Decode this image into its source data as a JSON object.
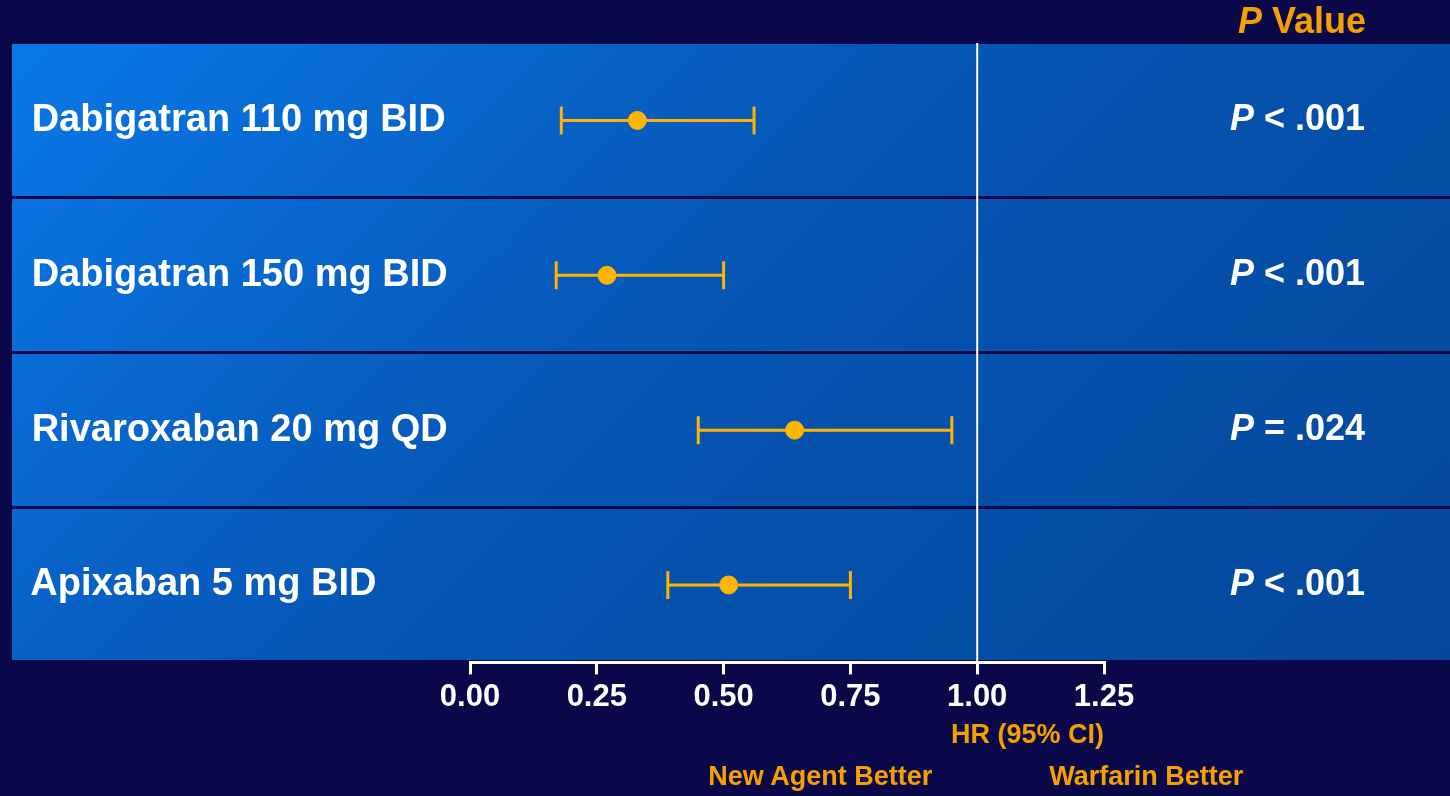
{
  "chart_data": {
    "type": "scatter",
    "orientation": "horizontal",
    "categories": [
      "Dabigatran 110 mg BID",
      "Dabigatran 150 mg BID",
      "Rivaroxaban 20 mg QD",
      "Apixaban 5 mg BID"
    ],
    "series": [
      {
        "color": "#ffb400",
        "values": [
          0.33,
          0.27,
          0.64,
          0.51
        ],
        "errors": [
          [
            0.18,
            0.56
          ],
          [
            0.17,
            0.5
          ],
          [
            0.45,
            0.95
          ],
          [
            0.39,
            0.75
          ]
        ]
      }
    ],
    "marker": "circle",
    "xlim": [
      0,
      1.25
    ],
    "xticks": [
      {
        "value": 0,
        "label": "0.00"
      },
      {
        "value": 0.25,
        "label": "0.25"
      },
      {
        "value": 0.5,
        "label": "0.50"
      },
      {
        "value": 0.75,
        "label": "0.75"
      },
      {
        "value": 1,
        "label": "1.00"
      },
      {
        "value": 1.25,
        "label": "1.25"
      }
    ],
    "xlabel": "HR (95% CI)",
    "ref_lines": [
      {
        "axis": "x",
        "value": 1,
        "color": "#ffffff"
      }
    ],
    "annotations": [
      "P Value",
      "P < .001",
      "P < .001",
      "P = .024",
      "P < .001",
      "New Agent Better",
      "Warfarin Better"
    ],
    "grid": false,
    "legend": false
  }
}
